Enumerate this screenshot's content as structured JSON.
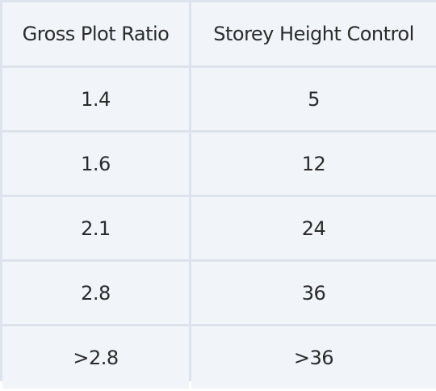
{
  "table": {
    "headers": [
      "Gross Plot Ratio",
      "Storey Height Control"
    ],
    "rows": [
      [
        "1.4",
        "5"
      ],
      [
        "1.6",
        "12"
      ],
      [
        "2.1",
        "24"
      ],
      [
        "2.8",
        "36"
      ],
      [
        ">2.8",
        ">36"
      ]
    ]
  },
  "colors": {
    "cell_background": "#f1f4f9",
    "border": "#dde3ec",
    "text": "#2b2b2b"
  }
}
